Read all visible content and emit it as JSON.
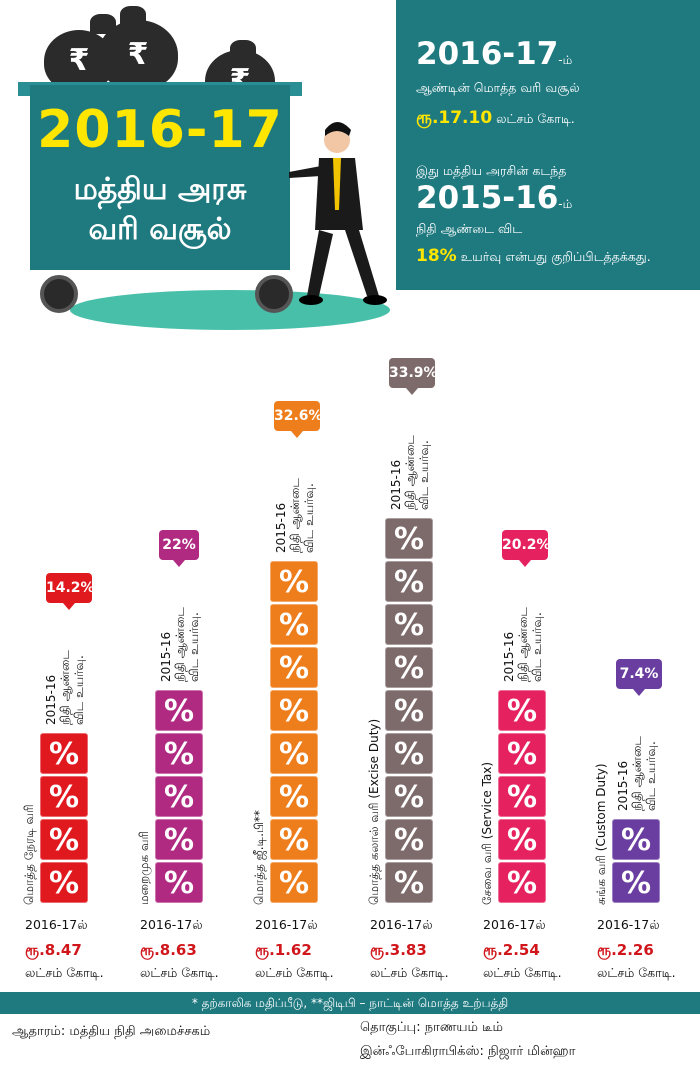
{
  "hero": {
    "year": "2016-17",
    "line1": "மத்திய அரசு",
    "line2": "வரி வசூல்",
    "bag_symbol": "₹"
  },
  "info": {
    "year1": "2016-17",
    "year1_suffix": "-ம்",
    "line1": "ஆண்டின் மொத்த வரி வசூல்",
    "amount": "ரூ.17.10",
    "amount_unit": "லட்சம் கோடி.",
    "line2": "இது மத்திய அரசின் கடந்த",
    "year2": "2015-16",
    "year2_suffix": "-ம்",
    "line3": "நிதி ஆண்டை விட",
    "growth": "18%",
    "line4": "உயர்வு என்பது குறிப்பிடத்தக்கது."
  },
  "chart_data": {
    "type": "bar",
    "categories": [
      "மொத்த நேரடி வரி",
      "மறைமுக வரி",
      "மொத்த ஜீ.டி.பி**",
      "மொத்த கலால் வரி (Excise Duty)",
      "சேவை வரி (Service Tax)",
      "சுங்க வரி (Custom Duty)"
    ],
    "values": [
      8.47,
      8.63,
      1.62,
      3.83,
      2.54,
      2.26
    ],
    "value_labels": [
      "ரூ.8.47",
      "ரூ.8.63",
      "ரூ.1.62",
      "ரூ.3.83",
      "ரூ.2.54",
      "ரூ.2.26"
    ],
    "growth_labels": [
      "14.2%",
      "22%",
      "32.6%",
      "33.9%",
      "20.2%",
      "7.4%"
    ],
    "year_label": "2016-17ல்",
    "unit_label": "லட்சம் கோடி.",
    "note_line1": "2015-16",
    "note_line2": "நிதி ஆண்டை",
    "note_line3": "விட உயர்வு.",
    "colors": [
      "#e0191f",
      "#b02a82",
      "#ee7d1b",
      "#7d6a6b",
      "#e6215f",
      "#6a3ea0"
    ],
    "cube_symbol": "%"
  },
  "footer": {
    "footnote": "* தற்காலிக மதிப்பீடு, **ஜிடிபி – நாட்டின் மொத்த உற்பத்தி",
    "source": "ஆதாரம்: மத்திய நிதி அமைச்சகம்",
    "compiled": "தொகுப்பு: நாணயம் டீம்",
    "graphics": "இன்ஃபோகிராபிக்ஸ்: நிஜார் மின்ஹா"
  }
}
